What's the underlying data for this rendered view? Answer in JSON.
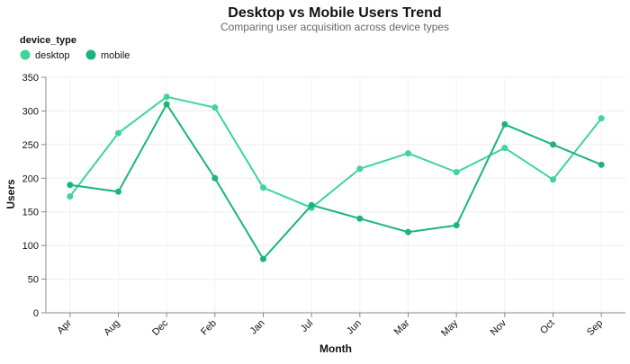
{
  "chart_data": {
    "type": "line",
    "title": "Desktop vs Mobile Users Trend",
    "subtitle": "Comparing user acquisition across device types",
    "xlabel": "Month",
    "ylabel": "Users",
    "legend_title": "device_type",
    "legend_position": "top-left",
    "grid": true,
    "ylim": [
      0,
      350
    ],
    "yticks": [
      0,
      50,
      100,
      150,
      200,
      250,
      300,
      350
    ],
    "categories": [
      "Apr",
      "Aug",
      "Dec",
      "Feb",
      "Jan",
      "Jul",
      "Jun",
      "Mar",
      "May",
      "Nov",
      "Oct",
      "Sep"
    ],
    "series": [
      {
        "name": "desktop",
        "color": "#3dd598",
        "values": [
          173,
          267,
          321,
          305,
          186,
          156,
          214,
          237,
          209,
          245,
          198,
          289
        ]
      },
      {
        "name": "mobile",
        "color": "#1bb47e",
        "values": [
          190,
          180,
          310,
          200,
          80,
          160,
          140,
          120,
          130,
          280,
          250,
          220
        ]
      }
    ]
  }
}
